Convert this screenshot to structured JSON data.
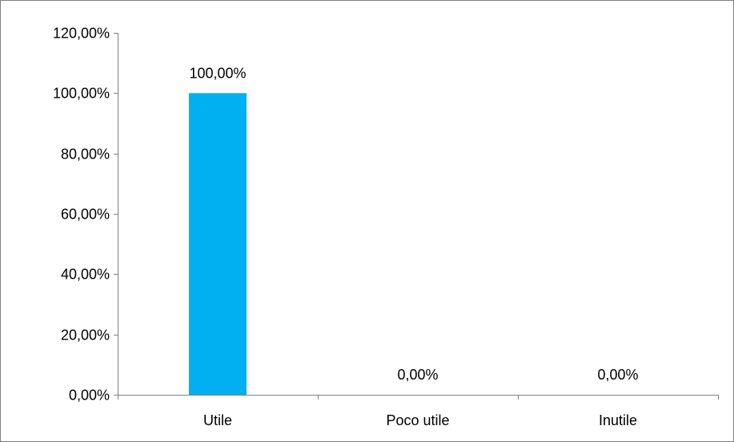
{
  "chart_data": {
    "type": "bar",
    "categories": [
      "Utile",
      "Poco utile",
      "Inutile"
    ],
    "values": [
      100,
      0,
      0
    ],
    "value_labels": [
      "100,00%",
      "0,00%",
      "0,00%"
    ],
    "y_ticks": [
      0,
      20,
      40,
      60,
      80,
      100,
      120
    ],
    "y_tick_labels": [
      "0,00%",
      "20,00%",
      "40,00%",
      "60,00%",
      "80,00%",
      "100,00%",
      "120,00%"
    ],
    "ylim": [
      0,
      120
    ],
    "unit": "%",
    "title": "",
    "xlabel": "",
    "ylabel": "",
    "grid": false,
    "legend": "none",
    "bar_color": "#00B0F0",
    "axis_color": "#808080",
    "frame_color": "#7F7F7F"
  }
}
